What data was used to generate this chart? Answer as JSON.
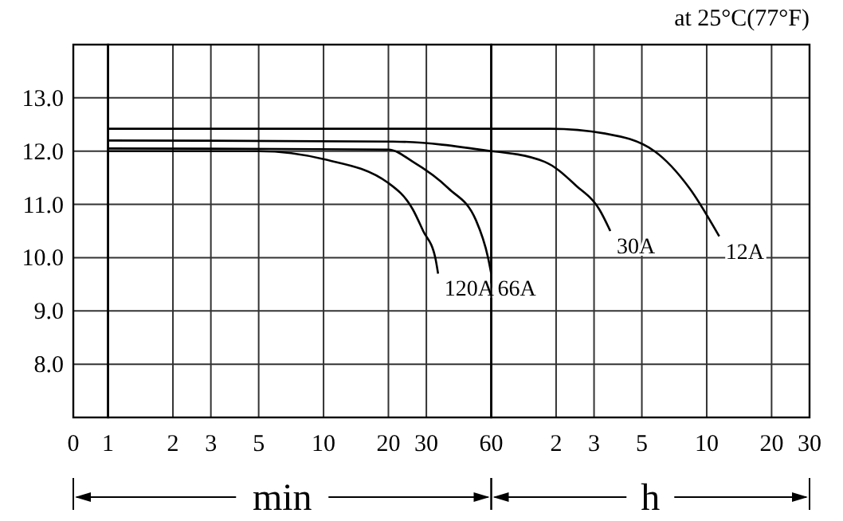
{
  "chart_data": [
    {
      "type": "line",
      "xlim": [
        0,
        1
      ],
      "xticks": [
        0,
        1
      ],
      "ylim": [
        7,
        14
      ],
      "yticks": [
        {
          "value": 8,
          "label": "8.0"
        },
        {
          "value": 9,
          "label": "9.0"
        },
        {
          "value": 10,
          "label": "10.0"
        },
        {
          "value": 11,
          "label": "11.0"
        },
        {
          "value": 12,
          "label": "12.0"
        },
        {
          "value": 13,
          "label": "13.0"
        }
      ],
      "grid": true
    },
    {
      "type": "line",
      "xlabel": "min",
      "xlim": [
        1,
        60
      ],
      "xticks": [
        2,
        3,
        5,
        10,
        20,
        30,
        60
      ],
      "ylim": [
        7,
        14
      ],
      "yticks": [
        8,
        9,
        10,
        11,
        12,
        13
      ],
      "grid": true,
      "tick_labels": "x",
      "log": "x",
      "series": [
        {
          "name": "120A",
          "color": "#000000",
          "x": [
            1,
            5,
            10,
            20,
            26,
            29,
            33,
            34
          ],
          "values": [
            12.0,
            12.0,
            11.85,
            11.4,
            10.9,
            10.5,
            10.0,
            9.7
          ]
        },
        {
          "name": "66A",
          "color": "#000000",
          "x": [
            1,
            20,
            26,
            38,
            51,
            58,
            60
          ],
          "values": [
            12.05,
            12.03,
            11.8,
            11.3,
            10.7,
            10.0,
            9.7
          ]
        },
        {
          "color": "#000000",
          "x": [
            1,
            21,
            60
          ],
          "values": [
            12.2,
            12.18,
            12.0
          ]
        },
        {
          "color": "#000000",
          "x": [
            1,
            60
          ],
          "values": [
            12.42,
            12.42
          ]
        }
      ]
    },
    {
      "type": "line",
      "xlabel": "h",
      "annotations": [
        "at 25°C(77°F)"
      ],
      "xlim": [
        1,
        30
      ],
      "xticks": [
        2,
        3,
        5,
        10,
        20,
        30
      ],
      "ylim": [
        7,
        14
      ],
      "yticks": [
        8,
        9,
        10,
        11,
        12,
        13
      ],
      "grid": true,
      "tick_labels": "x",
      "log": "x",
      "series": [
        {
          "name": "30A",
          "color": "#000000",
          "x": [
            1,
            1.77,
            2.48,
            3.18,
            3.57
          ],
          "values": [
            12.0,
            11.8,
            11.35,
            10.9,
            10.5
          ]
        },
        {
          "name": "12A",
          "color": "#000000",
          "x": [
            1,
            1.88,
            3.38,
            5.72,
            8.33,
            11.43
          ],
          "values": [
            12.42,
            12.42,
            12.33,
            12.0,
            11.3,
            10.4
          ]
        }
      ]
    }
  ]
}
